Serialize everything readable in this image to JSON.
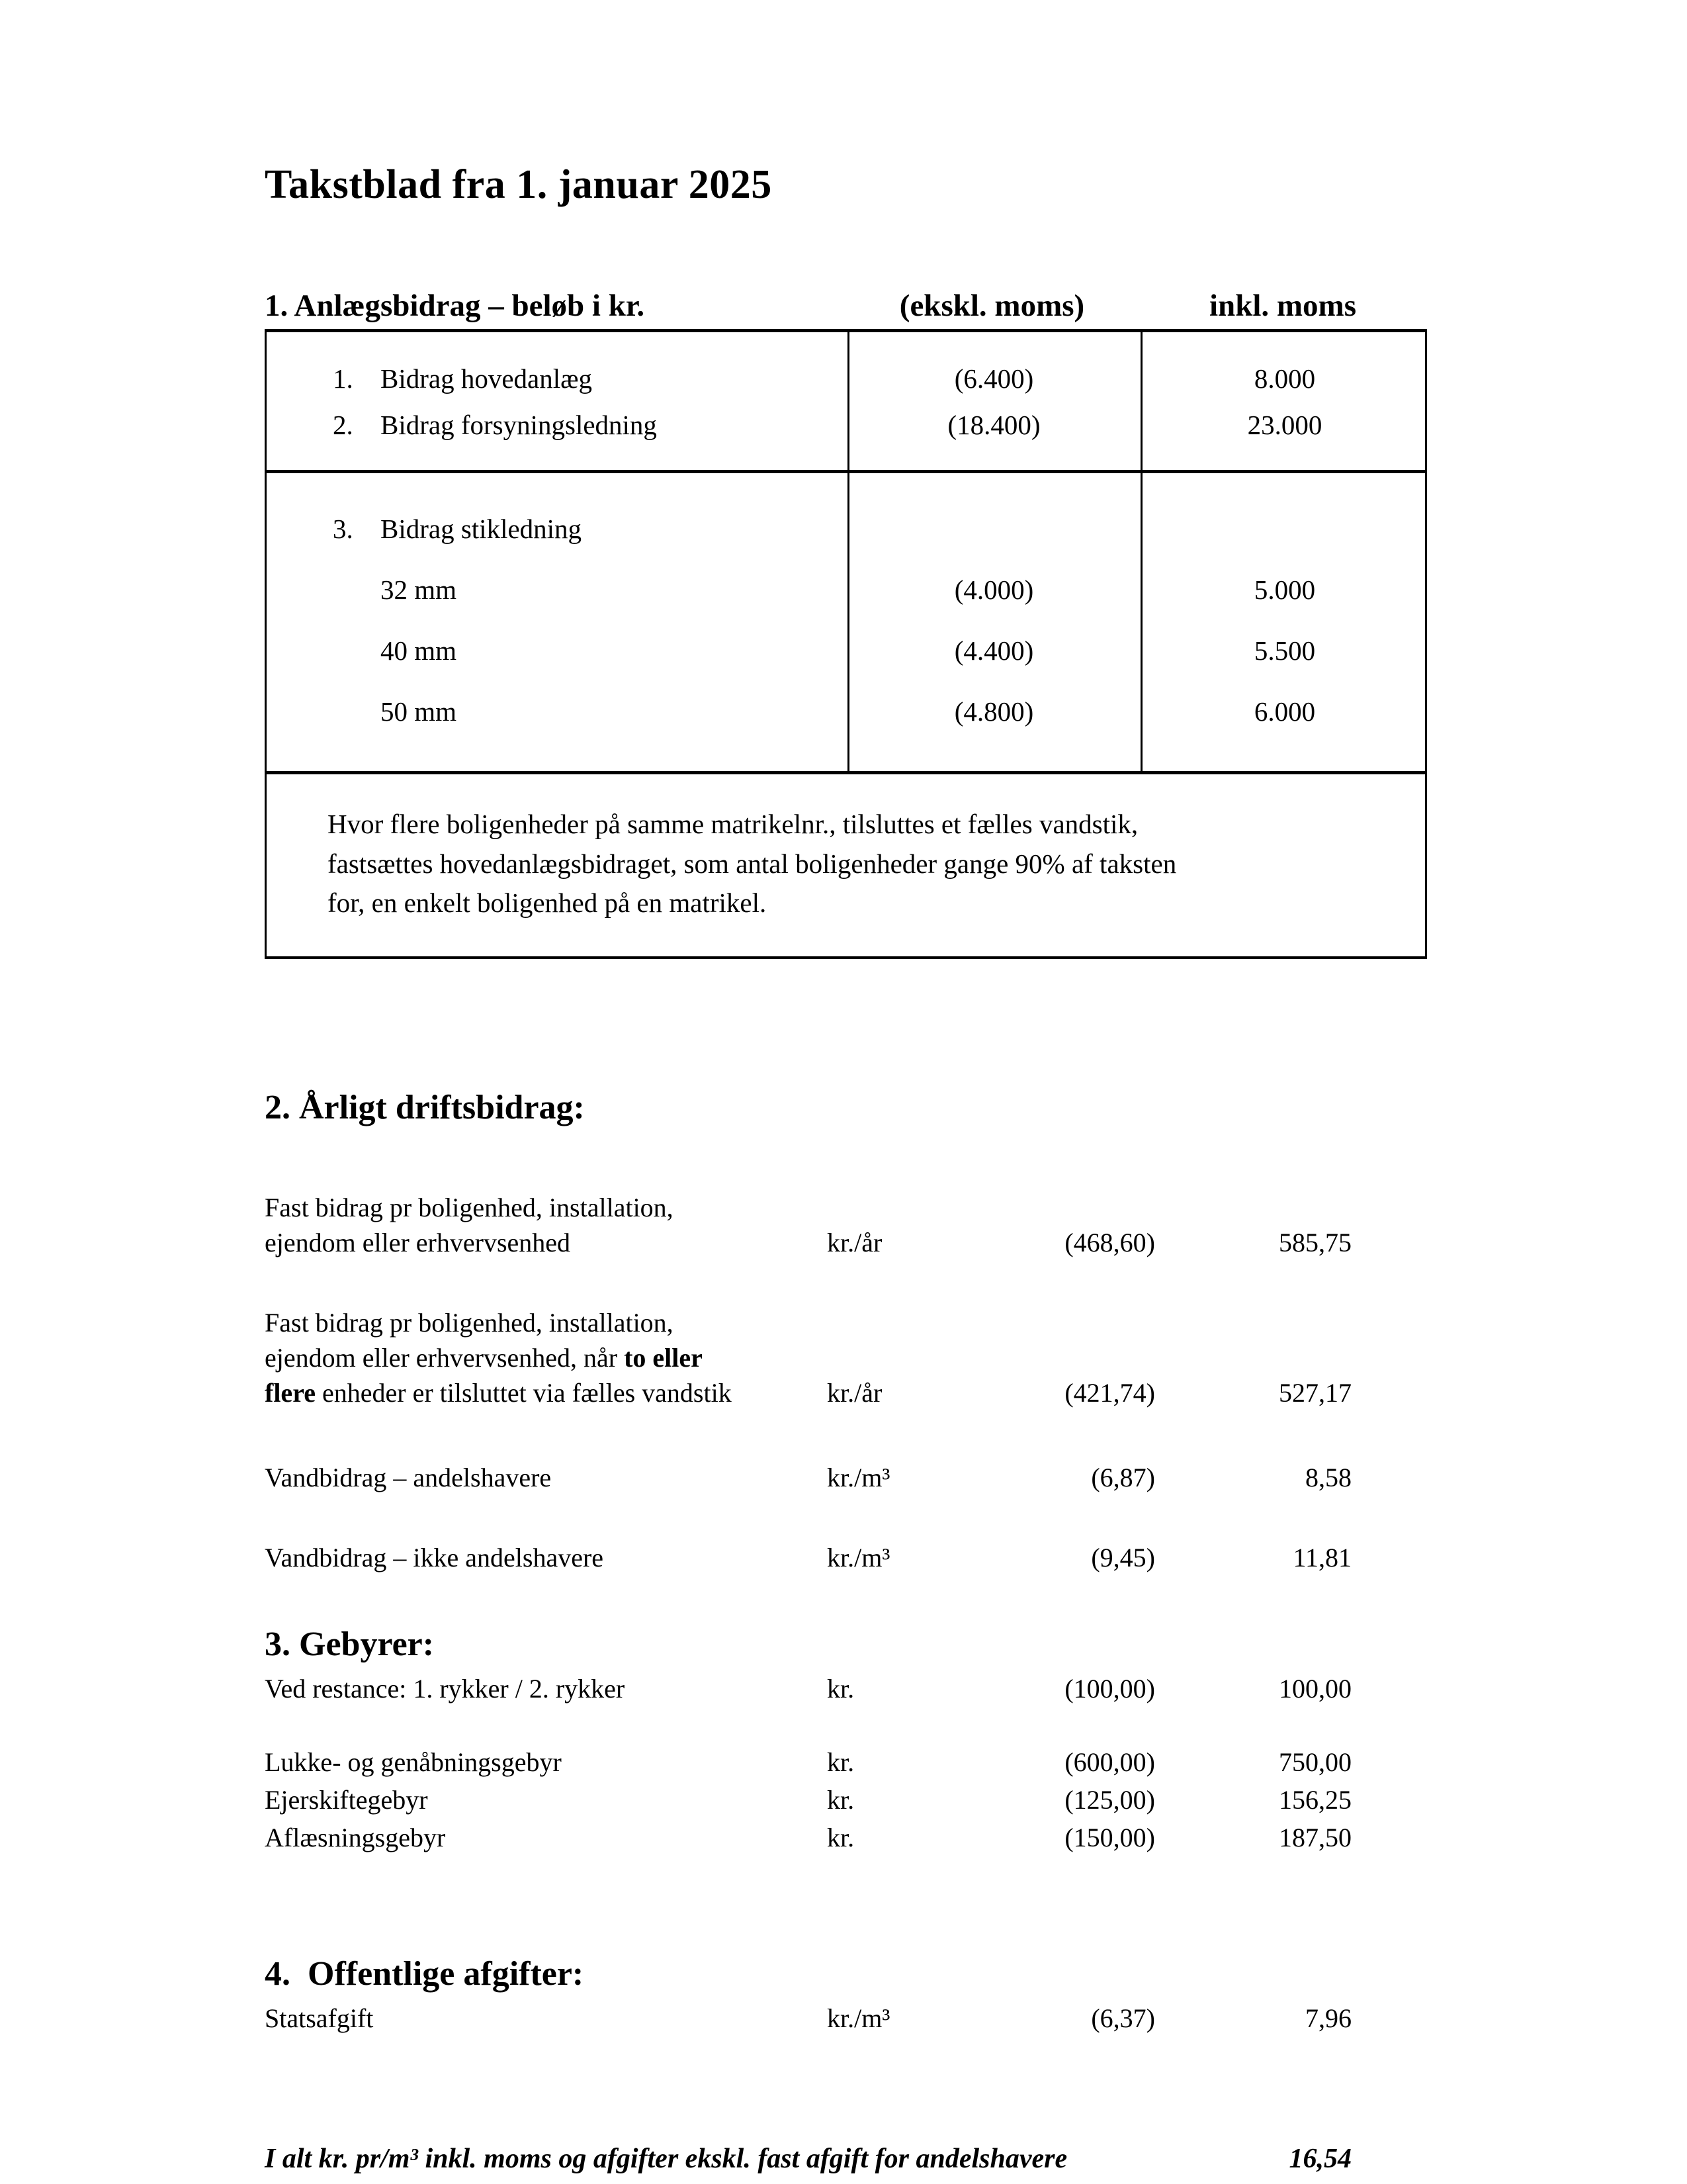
{
  "document": {
    "title": "Takstblad fra 1. januar 2025"
  },
  "anlaegsbidrag": {
    "heading": "1. Anlægsbidrag – beløb i kr.",
    "col_ekskl_moms": "(ekskl. moms)",
    "col_inkl_moms": "inkl. moms",
    "group1": [
      {
        "num": "1.",
        "label": "Bidrag hovedanlæg",
        "ekskl": "(6.400)",
        "inkl": "8.000"
      },
      {
        "num": "2.",
        "label": "Bidrag forsyningsledning",
        "ekskl": "(18.400)",
        "inkl": "23.000"
      }
    ],
    "group2": {
      "num": "3.",
      "title": "Bidrag stikledning",
      "rows": [
        {
          "label": "32 mm",
          "ekskl": "(4.000)",
          "inkl": "5.000"
        },
        {
          "label": "40 mm",
          "ekskl": "(4.400)",
          "inkl": "5.500"
        },
        {
          "label": "50 mm",
          "ekskl": "(4.800)",
          "inkl": "6.000"
        }
      ]
    },
    "note": "Hvor flere boligenheder på samme matrikelnr., tilsluttes et fælles vandstik,\nfastsættes hovedanlægsbidraget, som antal boligenheder gange 90% af taksten\nfor, en enkelt boligenhed på en matrikel."
  },
  "driftsbidrag": {
    "heading": "2. Årligt driftsbidrag:",
    "rows": [
      {
        "label": "Fast bidrag pr boligenhed, installation,\nejendom eller erhvervsenhed",
        "unit": "kr./år",
        "ekskl": "(468,60)",
        "inkl": "585,75"
      },
      {
        "label_parts": [
          {
            "text": "Fast bidrag pr boligenhed, installation,\nejendom eller erhvervsenhed, når ",
            "bold": false
          },
          {
            "text": "to eller\nflere",
            "bold": true
          },
          {
            "text": " enheder er tilsluttet via fælles vandstik",
            "bold": false
          }
        ],
        "unit": "kr./år",
        "ekskl": "(421,74)",
        "inkl": "527,17"
      },
      {
        "label": "Vandbidrag – andelshavere",
        "unit": "kr./m³",
        "ekskl": "(6,87)",
        "inkl": "8,58"
      },
      {
        "label": "Vandbidrag – ikke andelshavere",
        "unit": "kr./m³",
        "ekskl": "(9,45)",
        "inkl": "11,81"
      }
    ]
  },
  "gebyrer": {
    "heading": "3. Gebyrer:",
    "rows": [
      {
        "label": "Ved restance: 1. rykker / 2. rykker",
        "unit": "kr.",
        "ekskl": "(100,00)",
        "inkl": "100,00"
      },
      {
        "label": "Lukke- og genåbningsgebyr",
        "unit": "kr.",
        "ekskl": "(600,00)",
        "inkl": "750,00"
      },
      {
        "label": "Ejerskiftegebyr",
        "unit": "kr.",
        "ekskl": "(125,00)",
        "inkl": "156,25"
      },
      {
        "label": "Aflæsningsgebyr",
        "unit": "kr.",
        "ekskl": "(150,00)",
        "inkl": "187,50"
      }
    ]
  },
  "offentlige_afgifter": {
    "heading": "4.  Offentlige afgifter:",
    "rows": [
      {
        "label": "Statsafgift",
        "unit": "kr./m³",
        "ekskl": "(6,37)",
        "inkl": "7,96"
      }
    ]
  },
  "total": {
    "label": "I alt kr. pr/m³ inkl. moms og afgifter ekskl. fast afgift for andelshavere",
    "value": "16,54"
  }
}
